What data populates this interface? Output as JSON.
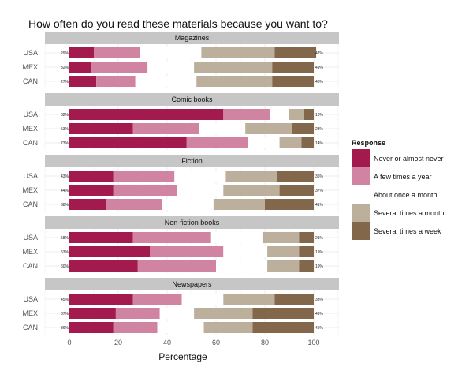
{
  "chart_data": {
    "type": "bar",
    "title": "How often do you read these materials because you want to?",
    "xlabel": "Percentage",
    "xlim": [
      -10,
      110
    ],
    "xticks": [
      0,
      20,
      40,
      60,
      80,
      100
    ],
    "legend": {
      "title": "Response",
      "placement": "right",
      "entries": [
        "Never or almost never",
        "A few times a year",
        "About once a month",
        "Several times a month",
        "Several times a week"
      ]
    },
    "colors": {
      "never": "#a31a4e",
      "few_times_year": "#d084a2",
      "once_month": "#ffffff",
      "several_month": "#bcb09c",
      "several_week": "#82674a",
      "strip_bg": "#c6c6c6",
      "grid": "#eeeeee"
    },
    "countries": [
      "USA",
      "MEX",
      "CAN"
    ],
    "panels": [
      {
        "name": "Magazines",
        "rows": [
          {
            "country": "USA",
            "left_label": "29%",
            "right_label": "47%",
            "never": 10,
            "few": 19,
            "gap": 25,
            "sev_month": 30,
            "sev_week": 17
          },
          {
            "country": "MEX",
            "left_label": "32%",
            "right_label": "49%",
            "never": 9,
            "few": 23,
            "gap": 19,
            "sev_month": 32,
            "sev_week": 17
          },
          {
            "country": "CAN",
            "left_label": "27%",
            "right_label": "48%",
            "never": 11,
            "few": 16,
            "gap": 25,
            "sev_month": 31,
            "sev_week": 17
          }
        ]
      },
      {
        "name": "Comic books",
        "rows": [
          {
            "country": "USA",
            "left_label": "82%",
            "right_label": "10%",
            "never": 63,
            "few": 19,
            "gap": 8,
            "sev_month": 6,
            "sev_week": 4
          },
          {
            "country": "MEX",
            "left_label": "53%",
            "right_label": "28%",
            "never": 26,
            "few": 27,
            "gap": 19,
            "sev_month": 19,
            "sev_week": 9
          },
          {
            "country": "CAN",
            "left_label": "73%",
            "right_label": "14%",
            "never": 48,
            "few": 25,
            "gap": 13,
            "sev_month": 9,
            "sev_week": 5
          }
        ]
      },
      {
        "name": "Fiction",
        "rows": [
          {
            "country": "USA",
            "left_label": "43%",
            "right_label": "36%",
            "never": 18,
            "few": 25,
            "gap": 21,
            "sev_month": 21,
            "sev_week": 15
          },
          {
            "country": "MEX",
            "left_label": "44%",
            "right_label": "37%",
            "never": 18,
            "few": 26,
            "gap": 19,
            "sev_month": 23,
            "sev_week": 14
          },
          {
            "country": "CAN",
            "left_label": "38%",
            "right_label": "41%",
            "never": 15,
            "few": 23,
            "gap": 21,
            "sev_month": 21,
            "sev_week": 20
          }
        ]
      },
      {
        "name": "Non-fiction books",
        "rows": [
          {
            "country": "USA",
            "left_label": "58%",
            "right_label": "21%",
            "never": 26,
            "few": 32,
            "gap": 21,
            "sev_month": 15,
            "sev_week": 6
          },
          {
            "country": "MEX",
            "left_label": "63%",
            "right_label": "19%",
            "never": 33,
            "few": 30,
            "gap": 18,
            "sev_month": 13,
            "sev_week": 6
          },
          {
            "country": "CAN",
            "left_label": "60%",
            "right_label": "19%",
            "never": 28,
            "few": 32,
            "gap": 21,
            "sev_month": 13,
            "sev_week": 6
          }
        ]
      },
      {
        "name": "Newspapers",
        "rows": [
          {
            "country": "USA",
            "left_label": "45%",
            "right_label": "38%",
            "never": 26,
            "few": 20,
            "gap": 17,
            "sev_month": 21,
            "sev_week": 16
          },
          {
            "country": "MEX",
            "left_label": "37%",
            "right_label": "49%",
            "never": 19,
            "few": 18,
            "gap": 14,
            "sev_month": 24,
            "sev_week": 25
          },
          {
            "country": "CAN",
            "left_label": "36%",
            "right_label": "45%",
            "never": 18,
            "few": 18,
            "gap": 19,
            "sev_month": 20,
            "sev_week": 25
          }
        ]
      }
    ]
  }
}
